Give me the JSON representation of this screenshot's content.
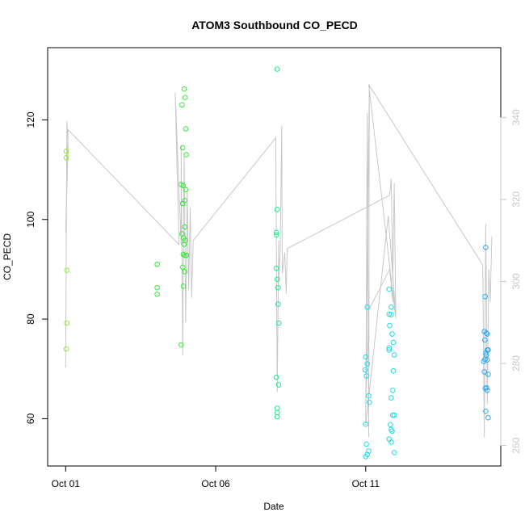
{
  "chart_data": {
    "type": "scatter",
    "title": "ATOM3 Southbound CO_PECD",
    "xlabel": "Date",
    "ylabel": "CO_PECD",
    "x_unit": "days since Oct 01",
    "xlim": [
      -0.6,
      14.5
    ],
    "ylim": [
      50.5,
      134.5
    ],
    "x_ticks": [
      {
        "value": 0,
        "label": "Oct 01"
      },
      {
        "value": 5,
        "label": "Oct 06"
      },
      {
        "value": 10,
        "label": "Oct 11"
      }
    ],
    "y_ticks": [
      60,
      80,
      100,
      120
    ],
    "y2_ticks": [
      260,
      280,
      300,
      320,
      340
    ],
    "y2lim": [
      255,
      357
    ],
    "grid": false,
    "legend": "none",
    "colors": {
      "axis": "#000000",
      "line": "#c8c8c8",
      "y2_axis": "#c8c8c8",
      "point_colors": [
        "#8ee83a",
        "#39e839",
        "#1ee88e",
        "#22d8e6",
        "#2aa9f2"
      ]
    },
    "series": [
      {
        "color": "#8ee83a",
        "points": [
          [
            0.02,
            113.7
          ],
          [
            0.02,
            112.4
          ],
          [
            0.04,
            89.8
          ],
          [
            0.04,
            79.2
          ],
          [
            0.02,
            74.0
          ]
        ]
      },
      {
        "color": "#39e839",
        "points": [
          [
            3.05,
            91.0
          ],
          [
            3.05,
            86.3
          ],
          [
            3.05,
            85.0
          ],
          [
            3.95,
            126.2
          ],
          [
            3.98,
            124.5
          ],
          [
            3.88,
            123.0
          ],
          [
            4.0,
            118.2
          ],
          [
            3.9,
            114.4
          ],
          [
            4.02,
            113.0
          ],
          [
            3.85,
            107.0
          ],
          [
            3.92,
            106.8
          ],
          [
            4.0,
            106.0
          ],
          [
            3.97,
            103.8
          ],
          [
            3.9,
            103.2
          ],
          [
            3.97,
            98.5
          ],
          [
            3.88,
            97.1
          ],
          [
            3.93,
            96.3
          ],
          [
            3.98,
            95.8
          ],
          [
            3.95,
            95.0
          ],
          [
            3.92,
            93.0
          ],
          [
            3.97,
            92.8
          ],
          [
            4.03,
            92.8
          ],
          [
            3.9,
            90.4
          ],
          [
            3.97,
            89.5
          ],
          [
            3.92,
            86.6
          ],
          [
            3.85,
            74.8
          ]
        ]
      },
      {
        "color": "#1ee88e",
        "points": [
          [
            7.05,
            130.2
          ],
          [
            7.05,
            102.0
          ],
          [
            7.02,
            97.4
          ],
          [
            7.02,
            96.9
          ],
          [
            7.02,
            90.2
          ],
          [
            7.05,
            88.0
          ],
          [
            7.08,
            86.3
          ],
          [
            7.08,
            83.0
          ],
          [
            7.1,
            79.2
          ],
          [
            7.02,
            68.3
          ],
          [
            7.1,
            66.8
          ],
          [
            7.05,
            62.1
          ],
          [
            7.05,
            61.2
          ],
          [
            7.05,
            60.4
          ]
        ]
      },
      {
        "color": "#22d8e6",
        "points": [
          [
            10.05,
            82.4
          ],
          [
            10.0,
            72.4
          ],
          [
            10.05,
            71.0
          ],
          [
            9.98,
            69.8
          ],
          [
            10.02,
            68.6
          ],
          [
            10.1,
            64.6
          ],
          [
            10.12,
            63.3
          ],
          [
            10.0,
            58.9
          ],
          [
            10.02,
            54.9
          ],
          [
            10.1,
            53.5
          ],
          [
            10.05,
            52.8
          ],
          [
            10.0,
            52.4
          ],
          [
            10.78,
            86.0
          ],
          [
            10.78,
            81.0
          ],
          [
            10.85,
            82.4
          ],
          [
            10.85,
            80.9
          ],
          [
            10.8,
            78.7
          ],
          [
            10.88,
            77.0
          ],
          [
            10.92,
            75.3
          ],
          [
            10.78,
            74.2
          ],
          [
            10.78,
            73.8
          ],
          [
            10.95,
            72.8
          ],
          [
            10.92,
            69.6
          ],
          [
            10.9,
            65.7
          ],
          [
            10.85,
            64.2
          ],
          [
            10.95,
            60.7
          ],
          [
            10.9,
            60.7
          ],
          [
            10.82,
            58.8
          ],
          [
            10.85,
            57.8
          ],
          [
            10.88,
            57.5
          ],
          [
            10.78,
            55.9
          ],
          [
            10.85,
            55.3
          ],
          [
            10.95,
            53.2
          ]
        ]
      },
      {
        "color": "#2aa9f2",
        "points": [
          [
            14.0,
            94.4
          ],
          [
            13.98,
            84.5
          ],
          [
            13.95,
            77.5
          ],
          [
            14.02,
            77.2
          ],
          [
            14.05,
            77.0
          ],
          [
            13.97,
            75.8
          ],
          [
            14.05,
            73.8
          ],
          [
            14.08,
            73.8
          ],
          [
            14.0,
            73.2
          ],
          [
            14.02,
            72.8
          ],
          [
            13.97,
            71.9
          ],
          [
            13.93,
            71.5
          ],
          [
            14.05,
            71.8
          ],
          [
            13.95,
            69.4
          ],
          [
            14.08,
            68.9
          ],
          [
            13.98,
            66.1
          ],
          [
            14.03,
            66.2
          ],
          [
            14.05,
            65.7
          ],
          [
            14.0,
            61.5
          ],
          [
            14.08,
            60.2
          ]
        ]
      }
    ],
    "secondary_line": {
      "axis": "y2",
      "points": [
        [
          0.0,
          279
        ],
        [
          0.04,
          339
        ],
        [
          0.08,
          333
        ],
        [
          0.0,
          312
        ],
        [
          0.08,
          337
        ],
        [
          3.78,
          309
        ],
        [
          3.65,
          346
        ],
        [
          3.85,
          309
        ],
        [
          3.85,
          333
        ],
        [
          3.9,
          282
        ],
        [
          3.95,
          331
        ],
        [
          4.0,
          290
        ],
        [
          4.05,
          322
        ],
        [
          4.1,
          298
        ],
        [
          4.15,
          318
        ],
        [
          4.2,
          296
        ],
        [
          4.25,
          310
        ],
        [
          7.0,
          335
        ],
        [
          7.05,
          273
        ],
        [
          7.1,
          310
        ],
        [
          7.1,
          300
        ],
        [
          7.15,
          307
        ],
        [
          7.2,
          338
        ],
        [
          7.22,
          302
        ],
        [
          7.3,
          307
        ],
        [
          7.35,
          297
        ],
        [
          7.38,
          308
        ],
        [
          10.8,
          321
        ],
        [
          10.85,
          325
        ],
        [
          10.9,
          300
        ],
        [
          10.95,
          324
        ],
        [
          11.0,
          292
        ],
        [
          10.75,
          316
        ],
        [
          10.0,
          265
        ],
        [
          10.05,
          341
        ],
        [
          10.1,
          262
        ],
        [
          10.12,
          348
        ],
        [
          10.0,
          270
        ],
        [
          10.1,
          293
        ],
        [
          10.8,
          303
        ],
        [
          10.9,
          295
        ],
        [
          10.85,
          300
        ],
        [
          10.95,
          296
        ],
        [
          11.0,
          291
        ],
        [
          10.1,
          348
        ],
        [
          13.9,
          304
        ],
        [
          13.95,
          262
        ],
        [
          14.0,
          314
        ],
        [
          14.05,
          270
        ],
        [
          14.1,
          303
        ],
        [
          14.15,
          295
        ],
        [
          14.2,
          311
        ]
      ]
    }
  }
}
